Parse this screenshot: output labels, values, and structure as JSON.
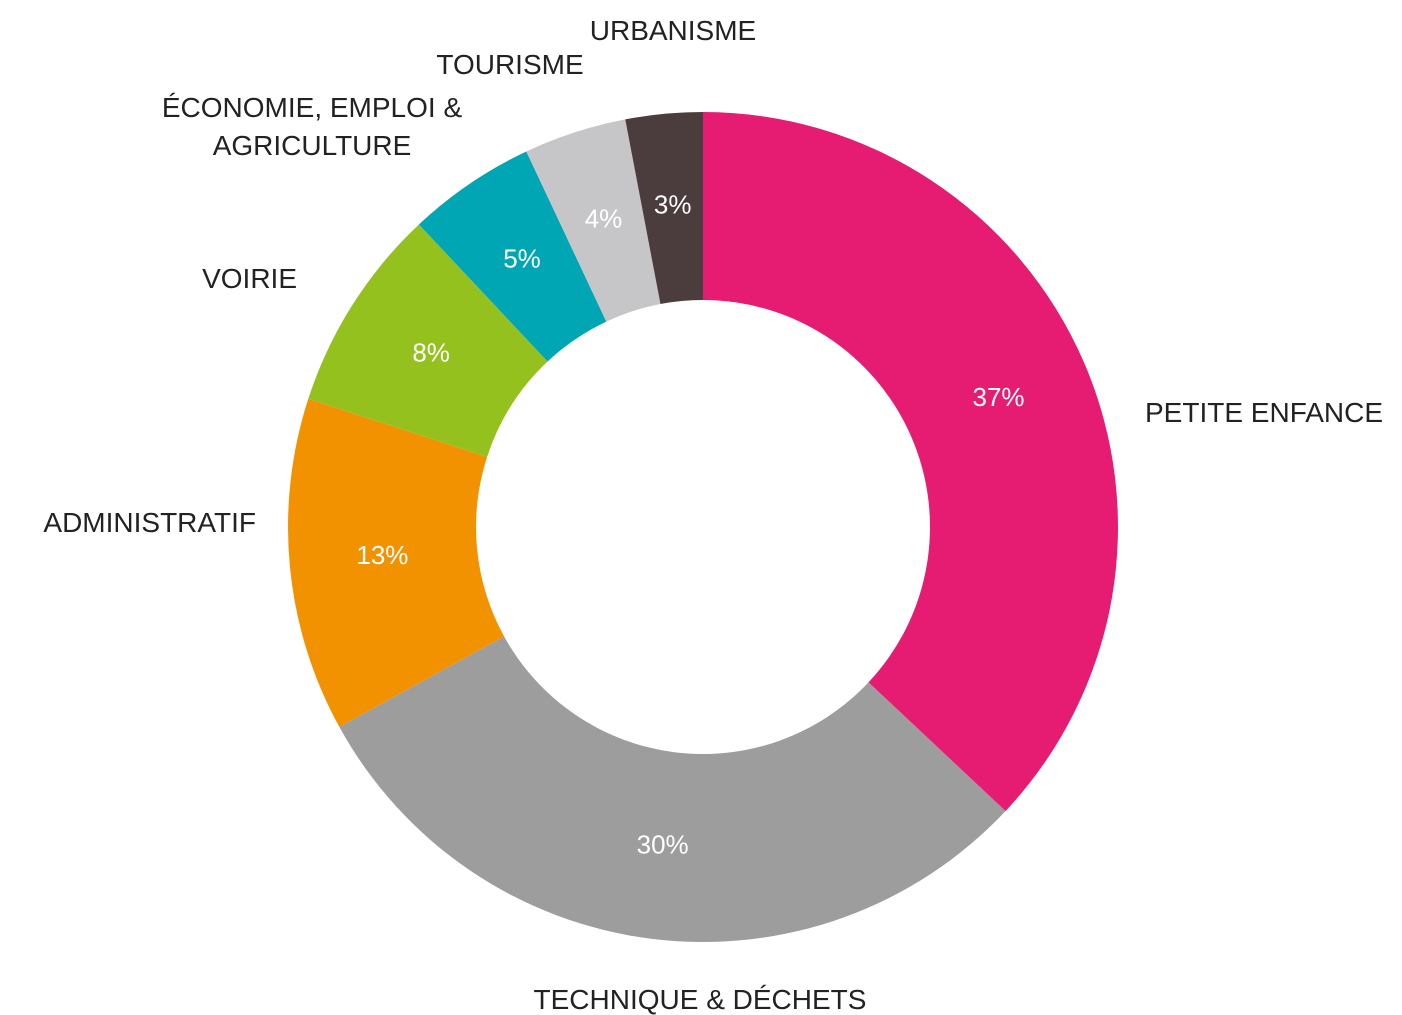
{
  "chart_data": {
    "type": "donut",
    "categories": [
      "PETITE ENFANCE",
      "TECHNIQUE & DÉCHETS",
      "ADMINISTRATIF",
      "VOIRIE",
      "ÉCONOMIE, EMPLOI & AGRICULTURE",
      "TOURISME",
      "URBANISME"
    ],
    "values": [
      37,
      30,
      13,
      8,
      5,
      4,
      3
    ],
    "value_labels": [
      "37%",
      "30%",
      "13%",
      "8%",
      "5%",
      "4%",
      "3%"
    ],
    "colors": [
      "#e51c72",
      "#9d9d9d",
      "#f39200",
      "#95c11f",
      "#00a6b4",
      "#c6c5c7",
      "#4b3d3d"
    ]
  }
}
